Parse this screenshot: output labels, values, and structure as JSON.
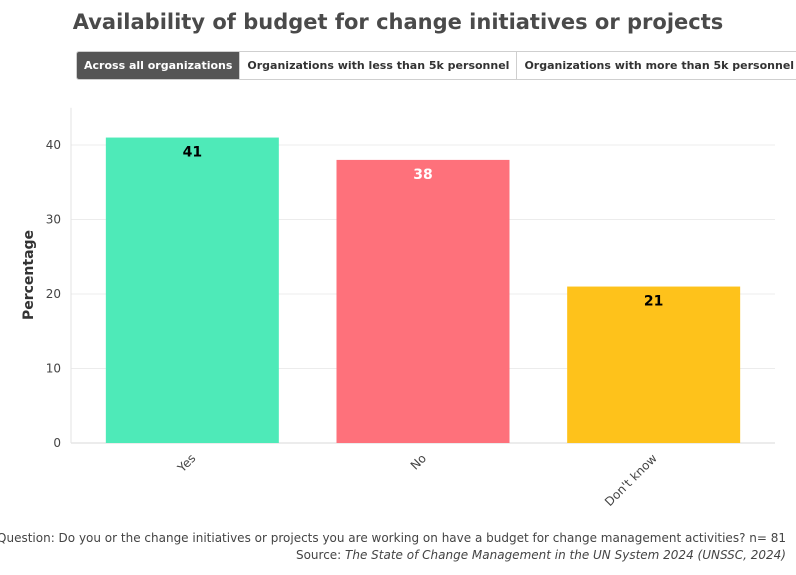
{
  "title": "Availability of budget for change initiatives or projects",
  "tabs": [
    {
      "label": "Across all organizations",
      "active": true
    },
    {
      "label": "Organizations with less than 5k personnel",
      "active": false
    },
    {
      "label": "Organizations with more than 5k personnel",
      "active": false
    }
  ],
  "footer": {
    "question": "Question: Do you or the change initiatives or projects you are working on have a budget for change management activities? n= 81",
    "source_prefix": "Source: ",
    "source_italic": "The State of Change Management in the UN System 2024 (UNSSC, 2024)"
  },
  "chart_data": {
    "type": "bar",
    "title": "Availability of budget for change initiatives or projects",
    "xlabel": "",
    "ylabel": "Percentage",
    "categories": [
      "Yes",
      "No",
      "Don't know"
    ],
    "values": [
      41,
      38,
      21
    ],
    "colors": [
      "#4eeab8",
      "#fe717b",
      "#fec21b"
    ],
    "label_colors": [
      "#000000",
      "#ffffff",
      "#000000"
    ],
    "ylim": [
      0,
      45
    ],
    "yticks": [
      0,
      10,
      20,
      30,
      40
    ],
    "grid": true,
    "legend": "none"
  }
}
